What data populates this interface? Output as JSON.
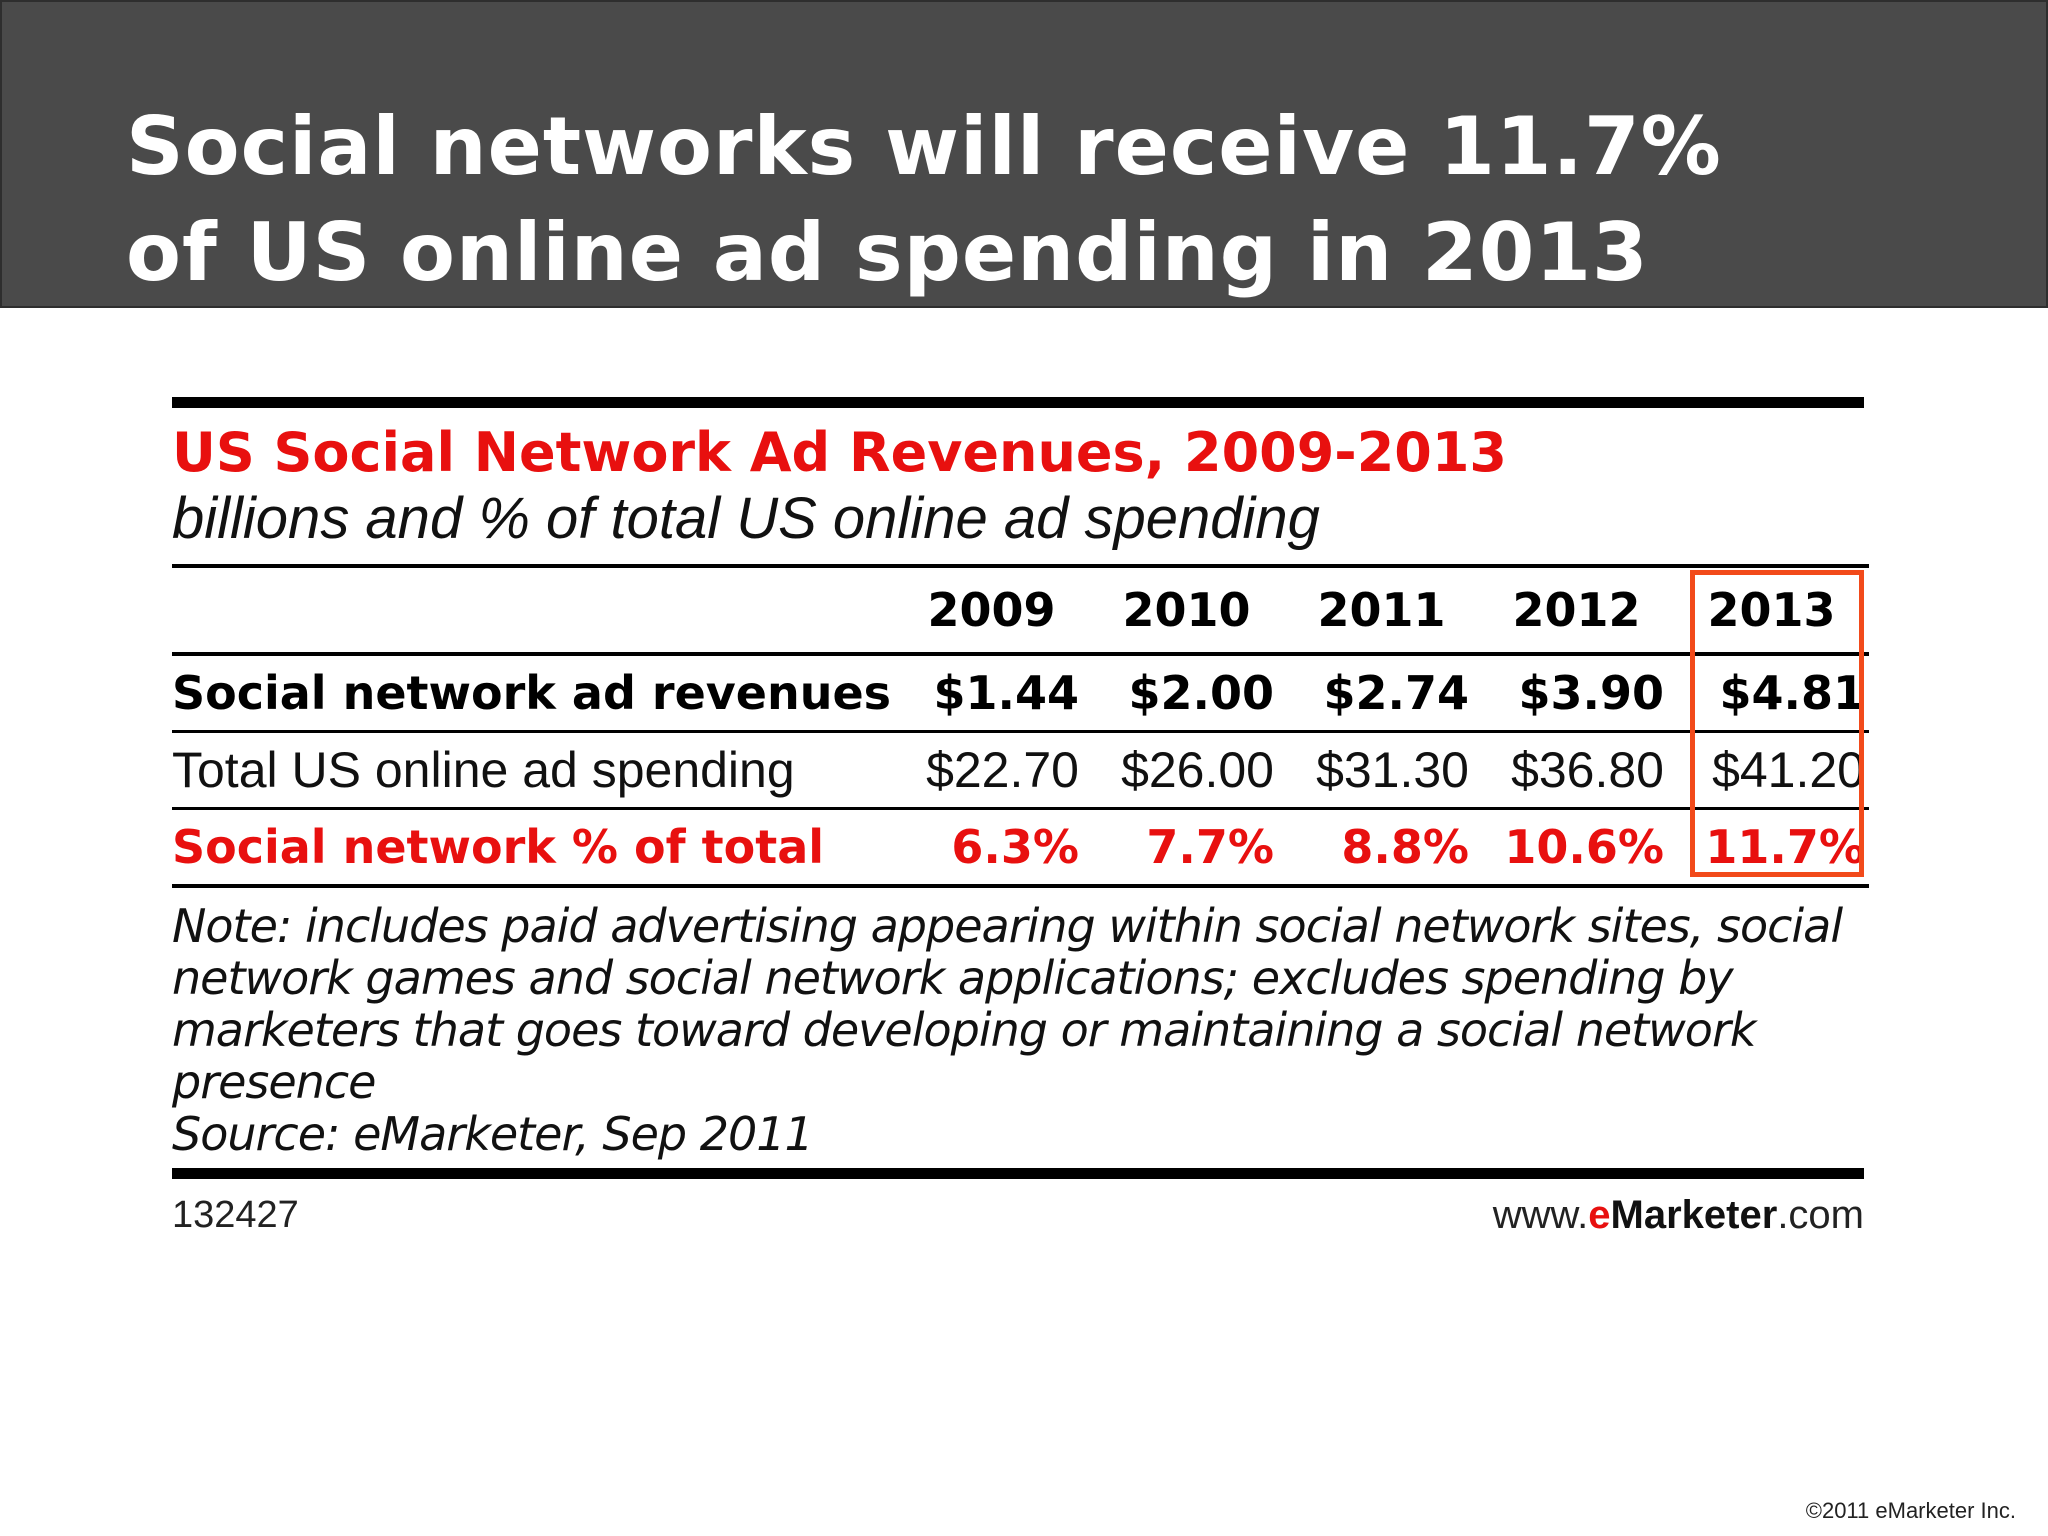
{
  "slide": {
    "title_line1": "Social networks will receive 11.7%",
    "title_line2": "of US online ad spending in 2013",
    "copyright": "©2011 eMarketer Inc."
  },
  "chart_data": {
    "type": "table",
    "title": "US Social Network Ad Revenues, 2009-2013",
    "subtitle": "billions and % of total US online ad spending",
    "columns": [
      "2009",
      "2010",
      "2011",
      "2012",
      "2013"
    ],
    "rows": [
      {
        "label": "Social network ad revenues",
        "values": [
          "$1.44",
          "$2.00",
          "$2.74",
          "$3.90",
          "$4.81"
        ]
      },
      {
        "label": "Total US online ad spending",
        "values": [
          "$22.70",
          "$26.00",
          "$31.30",
          "$36.80",
          "$41.20"
        ]
      },
      {
        "label": "Social network % of total",
        "values": [
          "6.3%",
          "7.7%",
          "8.8%",
          "10.6%",
          "11.7%"
        ]
      }
    ],
    "highlighted_column": "2013",
    "note": "Note: includes paid advertising appearing within social network sites, social network games and social network applications; excludes spending by marketers that goes toward developing or maintaining a social network presence",
    "source": "Source: eMarketer, Sep 2011",
    "chart_id": "132427",
    "site": {
      "prefix": "www.",
      "e": "e",
      "brand": "Marketer",
      "suffix": ".com"
    },
    "colors": {
      "accent_red": "#e8100f",
      "highlight_border": "#f24a1a",
      "banner": "#4a4a4a"
    }
  }
}
